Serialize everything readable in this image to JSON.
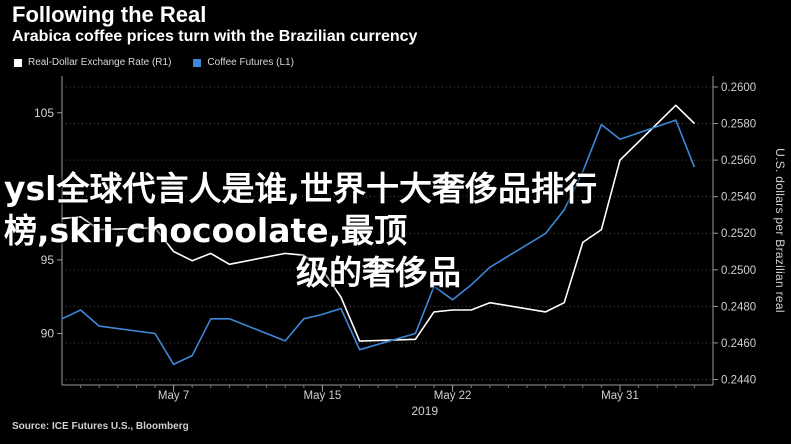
{
  "header": {
    "title": "Following the Real",
    "subtitle": "Arabica coffee prices turn with the Brazilian currency"
  },
  "legend": {
    "items": [
      {
        "label": "Real-Dollar Exchange Rate (R1)",
        "color": "#ffffff"
      },
      {
        "label": "Coffee Futures (L1)",
        "color": "#3d87d9"
      }
    ]
  },
  "source": "Source: ICE Futures U.S., Bloomberg",
  "overlay": {
    "line1": "ysl全球代言人是谁,世界十大奢侈品排行",
    "line2": "榜,skii,chocoolate,最顶",
    "line3": "级的奢侈品"
  },
  "chart_data": {
    "type": "line",
    "title": "Following the Real",
    "subtitle": "Arabica coffee prices turn with the Brazilian currency",
    "xlabel": "2019",
    "x_ticks": [
      "May 7",
      "May 15",
      "May 22",
      "May 31"
    ],
    "x_tick_days": [
      7,
      15,
      22,
      31
    ],
    "xlim": [
      1,
      36
    ],
    "left_axis": {
      "label": "",
      "ylim": [
        86.5,
        107.5
      ],
      "ticks": [
        "90",
        "95",
        "105"
      ],
      "tick_values": [
        90,
        95,
        105
      ]
    },
    "right_axis": {
      "label": "U.S. dollars per Brazilian real",
      "ylim": [
        0.2437,
        0.2606
      ],
      "ticks": [
        "0.2600",
        "0.2580",
        "0.2560",
        "0.2540",
        "0.2520",
        "0.2500",
        "0.2480",
        "0.2460",
        "0.2440"
      ],
      "tick_values": [
        0.26,
        0.258,
        0.256,
        0.254,
        0.252,
        0.25,
        0.248,
        0.246,
        0.244
      ]
    },
    "series": [
      {
        "name": "Real-Dollar Exchange Rate (R1)",
        "axis": "right",
        "color": "#ffffff",
        "x": [
          1,
          2,
          3,
          6,
          7,
          8,
          9,
          10,
          13,
          14,
          15,
          16,
          17,
          20,
          21,
          22,
          23,
          24,
          27,
          28,
          29,
          30,
          31,
          34,
          35
        ],
        "values": [
          0.2528,
          0.2529,
          0.2522,
          0.2523,
          0.251,
          0.2505,
          0.2509,
          0.2503,
          0.2509,
          0.2508,
          0.25,
          0.2485,
          0.2461,
          0.2462,
          0.2477,
          0.2478,
          0.2478,
          0.2482,
          0.2477,
          0.2482,
          0.2515,
          0.2522,
          0.256,
          0.259,
          0.258
        ]
      },
      {
        "name": "Coffee Futures (L1)",
        "axis": "left",
        "color": "#3d87d9",
        "x": [
          1,
          2,
          3,
          6,
          7,
          8,
          9,
          10,
          13,
          14,
          15,
          16,
          17,
          20,
          21,
          22,
          23,
          24,
          27,
          28,
          29,
          30,
          31,
          34,
          35
        ],
        "values": [
          91.0,
          91.6,
          90.5,
          90.0,
          87.9,
          88.5,
          91.0,
          91.0,
          89.5,
          91.0,
          91.3,
          91.7,
          88.9,
          90.0,
          93.2,
          92.3,
          93.3,
          94.5,
          96.8,
          98.4,
          101.0,
          104.2,
          103.2,
          104.5,
          101.3
        ]
      }
    ],
    "legend_position": "top-left",
    "grid": "horizontal"
  }
}
